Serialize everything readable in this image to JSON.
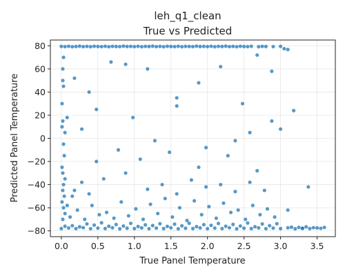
{
  "chart_data": {
    "type": "scatter",
    "title": "leh_q1_clean",
    "subtitle": "True vs Predicted",
    "xlabel": "True Panel Temperature",
    "ylabel": "Predicted Panel Temperature",
    "xlim": [
      -0.15,
      3.75
    ],
    "ylim": [
      -85,
      85
    ],
    "xticks": [
      0.0,
      0.5,
      1.0,
      1.5,
      2.0,
      2.5,
      3.0,
      3.5
    ],
    "xtick_labels": [
      "0.0",
      "0.5",
      "1.0",
      "1.5",
      "2.0",
      "2.5",
      "3.0",
      "3.5"
    ],
    "yticks": [
      -80,
      -60,
      -40,
      -20,
      0,
      20,
      40,
      60,
      80
    ],
    "ytick_labels": [
      "−80",
      "−60",
      "−40",
      "−20",
      "0",
      "20",
      "40",
      "60",
      "80"
    ],
    "grid": true,
    "marker_color": "#1f77b4",
    "series": [
      {
        "points": [
          [
            0.0,
            79.5
          ],
          [
            0.05,
            79.3
          ],
          [
            0.1,
            79.6
          ],
          [
            0.15,
            79.2
          ],
          [
            0.2,
            79.4
          ],
          [
            0.25,
            79.7
          ],
          [
            0.3,
            79.3
          ],
          [
            0.35,
            79.5
          ],
          [
            0.4,
            79.2
          ],
          [
            0.45,
            79.6
          ],
          [
            0.5,
            79.4
          ],
          [
            0.55,
            79.3
          ],
          [
            0.6,
            79.6
          ],
          [
            0.65,
            79.2
          ],
          [
            0.7,
            79.5
          ],
          [
            0.75,
            79.4
          ],
          [
            0.8,
            79.3
          ],
          [
            0.85,
            79.7
          ],
          [
            0.9,
            79.4
          ],
          [
            0.95,
            79.5
          ],
          [
            1.0,
            79.3
          ],
          [
            1.05,
            79.6
          ],
          [
            1.1,
            79.2
          ],
          [
            1.15,
            79.5
          ],
          [
            1.2,
            79.4
          ],
          [
            1.25,
            79.7
          ],
          [
            1.3,
            79.3
          ],
          [
            1.35,
            79.5
          ],
          [
            1.4,
            79.2
          ],
          [
            1.45,
            79.6
          ],
          [
            1.5,
            79.4
          ],
          [
            1.55,
            79.3
          ],
          [
            1.6,
            79.6
          ],
          [
            1.65,
            79.2
          ],
          [
            1.7,
            79.5
          ],
          [
            1.75,
            79.4
          ],
          [
            1.8,
            79.3
          ],
          [
            1.85,
            79.7
          ],
          [
            1.9,
            79.4
          ],
          [
            1.95,
            79.5
          ],
          [
            2.0,
            79.3
          ],
          [
            2.05,
            79.6
          ],
          [
            2.1,
            79.2
          ],
          [
            2.15,
            79.5
          ],
          [
            2.2,
            79.4
          ],
          [
            2.25,
            79.7
          ],
          [
            2.3,
            79.3
          ],
          [
            2.35,
            79.5
          ],
          [
            2.4,
            79.2
          ],
          [
            2.45,
            79.6
          ],
          [
            2.5,
            79.4
          ],
          [
            2.55,
            79.3
          ],
          [
            2.6,
            79.6
          ],
          [
            2.7,
            79.2
          ],
          [
            2.75,
            79.5
          ],
          [
            2.8,
            79.4
          ],
          [
            2.9,
            79.3
          ],
          [
            3.0,
            79.5
          ],
          [
            3.05,
            77.5
          ],
          [
            3.1,
            76.8
          ],
          [
            0.02,
            60.0
          ],
          [
            0.03,
            45.0
          ],
          [
            0.01,
            30.0
          ],
          [
            0.02,
            15.0
          ],
          [
            0.03,
            -5.0
          ],
          [
            0.01,
            -25.0
          ],
          [
            0.02,
            -45.0
          ],
          [
            0.03,
            -60.0
          ],
          [
            0.02,
            -70.0
          ],
          [
            0.01,
            10.0
          ],
          [
            0.04,
            -15.0
          ],
          [
            0.05,
            -35.0
          ],
          [
            0.02,
            50.0
          ],
          [
            0.03,
            70.0
          ],
          [
            0.01,
            -55.0
          ],
          [
            0.05,
            -65.0
          ],
          [
            0.04,
            -50.0
          ],
          [
            0.03,
            -40.0
          ],
          [
            0.02,
            -30.0
          ],
          [
            0.05,
            5.0
          ],
          [
            0.0,
            -78.0
          ],
          [
            0.1,
            -77.5
          ],
          [
            0.2,
            -78.0
          ],
          [
            0.3,
            -77.2
          ],
          [
            0.4,
            -78.1
          ],
          [
            0.5,
            -77.6
          ],
          [
            0.6,
            -78.0
          ],
          [
            0.7,
            -77.3
          ],
          [
            0.8,
            -78.2
          ],
          [
            0.9,
            -77.7
          ],
          [
            1.0,
            -78.0
          ],
          [
            1.1,
            -77.4
          ],
          [
            1.2,
            -78.1
          ],
          [
            1.3,
            -77.6
          ],
          [
            1.4,
            -78.0
          ],
          [
            1.5,
            -77.3
          ],
          [
            1.6,
            -78.2
          ],
          [
            1.7,
            -77.7
          ],
          [
            1.8,
            -78.0
          ],
          [
            1.9,
            -77.4
          ],
          [
            2.0,
            -78.1
          ],
          [
            2.1,
            -77.6
          ],
          [
            2.2,
            -78.0
          ],
          [
            2.3,
            -77.3
          ],
          [
            2.4,
            -78.2
          ],
          [
            2.5,
            -77.7
          ],
          [
            2.6,
            -78.0
          ],
          [
            2.7,
            -77.4
          ],
          [
            2.8,
            -78.1
          ],
          [
            2.9,
            -77.6
          ],
          [
            3.0,
            -78.0
          ],
          [
            3.1,
            -77.3
          ],
          [
            3.2,
            -78.2
          ],
          [
            3.3,
            -77.7
          ],
          [
            3.4,
            -78.0
          ],
          [
            3.5,
            -77.4
          ],
          [
            3.55,
            -77.8
          ],
          [
            3.45,
            -77.2
          ],
          [
            3.35,
            -76.5
          ],
          [
            3.25,
            -77.0
          ],
          [
            0.05,
            -76.0
          ],
          [
            0.15,
            -75.5
          ],
          [
            0.25,
            -76.5
          ],
          [
            0.35,
            -74.0
          ],
          [
            0.45,
            -75.0
          ],
          [
            0.55,
            -73.0
          ],
          [
            0.65,
            -76.0
          ],
          [
            0.75,
            -74.5
          ],
          [
            0.85,
            -75.8
          ],
          [
            0.95,
            -73.5
          ],
          [
            1.05,
            -76.2
          ],
          [
            1.15,
            -74.8
          ],
          [
            1.25,
            -75.4
          ],
          [
            1.35,
            -73.8
          ],
          [
            1.45,
            -76.1
          ],
          [
            1.55,
            -74.2
          ],
          [
            1.65,
            -75.6
          ],
          [
            1.75,
            -73.4
          ],
          [
            1.85,
            -76.3
          ],
          [
            1.95,
            -74.6
          ],
          [
            2.05,
            -75.2
          ],
          [
            2.15,
            -73.6
          ],
          [
            2.25,
            -76.0
          ],
          [
            2.35,
            -74.4
          ],
          [
            2.45,
            -75.8
          ],
          [
            2.55,
            -73.2
          ],
          [
            2.65,
            -76.4
          ],
          [
            2.75,
            -74.0
          ],
          [
            2.85,
            -75.5
          ],
          [
            2.95,
            -73.8
          ],
          [
            0.12,
            -68.0
          ],
          [
            0.22,
            -62.0
          ],
          [
            0.32,
            -70.0
          ],
          [
            0.42,
            -58.0
          ],
          [
            0.52,
            -66.0
          ],
          [
            0.62,
            -64.0
          ],
          [
            0.72,
            -69.0
          ],
          [
            0.82,
            -55.0
          ],
          [
            0.92,
            -67.0
          ],
          [
            1.02,
            -61.0
          ],
          [
            1.12,
            -70.0
          ],
          [
            1.22,
            -57.0
          ],
          [
            1.32,
            -65.0
          ],
          [
            1.42,
            -52.0
          ],
          [
            1.52,
            -68.0
          ],
          [
            1.62,
            -60.0
          ],
          [
            1.72,
            -71.0
          ],
          [
            1.82,
            -54.0
          ],
          [
            1.92,
            -66.0
          ],
          [
            2.02,
            -59.0
          ],
          [
            2.12,
            -69.0
          ],
          [
            2.22,
            -56.0
          ],
          [
            2.32,
            -64.0
          ],
          [
            2.42,
            -62.0
          ],
          [
            2.52,
            -70.0
          ],
          [
            2.62,
            -58.0
          ],
          [
            2.72,
            -66.0
          ],
          [
            2.82,
            -61.0
          ],
          [
            2.92,
            -68.0
          ],
          [
            3.1,
            -62.0
          ],
          [
            0.18,
            -45.0
          ],
          [
            0.28,
            -38.0
          ],
          [
            0.38,
            -48.0
          ],
          [
            0.58,
            -35.0
          ],
          [
            0.88,
            -30.0
          ],
          [
            1.18,
            -44.0
          ],
          [
            1.38,
            -40.0
          ],
          [
            1.58,
            -48.0
          ],
          [
            1.78,
            -36.0
          ],
          [
            1.98,
            -42.0
          ],
          [
            2.18,
            -40.0
          ],
          [
            2.38,
            -46.0
          ],
          [
            2.58,
            -38.0
          ],
          [
            2.78,
            -45.0
          ],
          [
            3.38,
            -42.0
          ],
          [
            0.48,
            -20.0
          ],
          [
            0.78,
            -10.0
          ],
          [
            1.08,
            -18.0
          ],
          [
            1.48,
            -12.0
          ],
          [
            1.88,
            -25.0
          ],
          [
            2.28,
            -15.0
          ],
          [
            2.68,
            -28.0
          ],
          [
            0.08,
            18.0
          ],
          [
            0.48,
            25.0
          ],
          [
            0.98,
            18.0
          ],
          [
            1.28,
            -2.0
          ],
          [
            1.58,
            28.0
          ],
          [
            1.98,
            -8.0
          ],
          [
            2.38,
            -2.0
          ],
          [
            2.88,
            15.0
          ],
          [
            0.18,
            52.0
          ],
          [
            0.38,
            40.0
          ],
          [
            0.68,
            66.0
          ],
          [
            0.88,
            64.0
          ],
          [
            1.18,
            60.0
          ],
          [
            1.58,
            35.0
          ],
          [
            1.88,
            48.0
          ],
          [
            2.18,
            62.0
          ],
          [
            2.68,
            72.0
          ],
          [
            2.88,
            58.0
          ],
          [
            3.18,
            24.0
          ],
          [
            3.0,
            8.0
          ],
          [
            2.58,
            5.0
          ],
          [
            2.48,
            30.0
          ],
          [
            0.28,
            8.0
          ],
          [
            0.08,
            -58.0
          ],
          [
            0.15,
            -50.0
          ],
          [
            3.6,
            -77.0
          ],
          [
            3.3,
            -77.9
          ],
          [
            3.15,
            -76.8
          ]
        ]
      }
    ]
  }
}
